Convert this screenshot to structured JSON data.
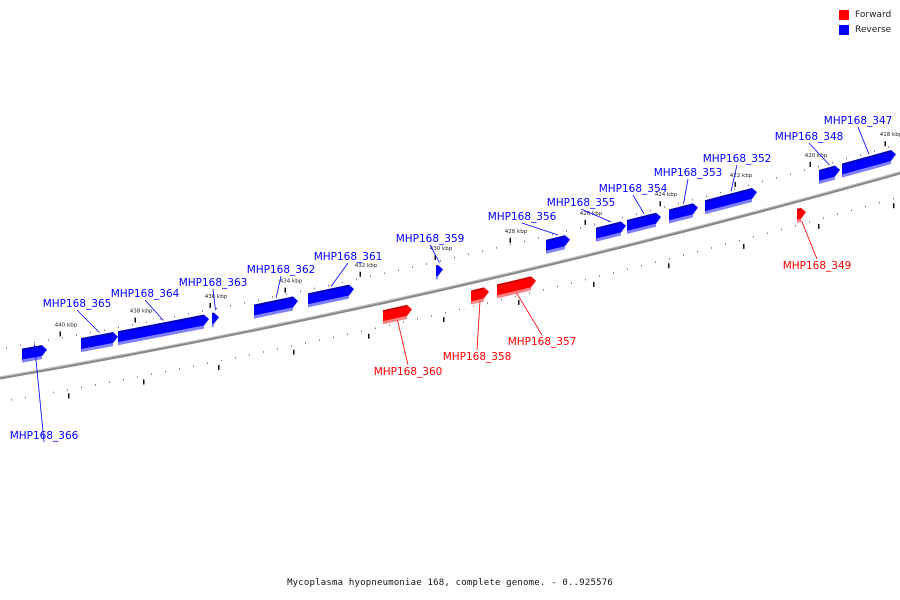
{
  "legend": {
    "forward": {
      "label": "Forward",
      "color": "#ff0000"
    },
    "reverse": {
      "label": "Reverse",
      "color": "#0000ff"
    }
  },
  "caption": "Mycoplasma hyopneumoniae 168, complete genome. - 0..925576",
  "ticks": [
    {
      "label": "440 kbp",
      "kbp": 440
    },
    {
      "label": "438 kbp",
      "kbp": 438
    },
    {
      "label": "436 kbp",
      "kbp": 436
    },
    {
      "label": "434 kbp",
      "kbp": 434
    },
    {
      "label": "432 kbp",
      "kbp": 432
    },
    {
      "label": "430 kbp",
      "kbp": 430
    },
    {
      "label": "428 kbp",
      "kbp": 428
    },
    {
      "label": "426 kbp",
      "kbp": 426
    },
    {
      "label": "424 kbp",
      "kbp": 424
    },
    {
      "label": "422 kbp",
      "kbp": 422
    },
    {
      "label": "420 kbp",
      "kbp": 420
    },
    {
      "label": "418 kbp",
      "kbp": 418
    }
  ],
  "genes": [
    {
      "name": "MHP168_347",
      "strand": "reverse"
    },
    {
      "name": "MHP168_348",
      "strand": "reverse"
    },
    {
      "name": "MHP168_349",
      "strand": "forward"
    },
    {
      "name": "MHP168_352",
      "strand": "reverse"
    },
    {
      "name": "MHP168_353",
      "strand": "reverse"
    },
    {
      "name": "MHP168_354",
      "strand": "reverse"
    },
    {
      "name": "MHP168_355",
      "strand": "reverse"
    },
    {
      "name": "MHP168_356",
      "strand": "reverse"
    },
    {
      "name": "MHP168_357",
      "strand": "forward"
    },
    {
      "name": "MHP168_358",
      "strand": "forward"
    },
    {
      "name": "MHP168_359",
      "strand": "reverse"
    },
    {
      "name": "MHP168_360",
      "strand": "forward"
    },
    {
      "name": "MHP168_361",
      "strand": "reverse"
    },
    {
      "name": "MHP168_362",
      "strand": "reverse"
    },
    {
      "name": "MHP168_363",
      "strand": "reverse"
    },
    {
      "name": "MHP168_364",
      "strand": "reverse"
    },
    {
      "name": "MHP168_365",
      "strand": "reverse"
    },
    {
      "name": "MHP168_366",
      "strand": "reverse"
    }
  ]
}
